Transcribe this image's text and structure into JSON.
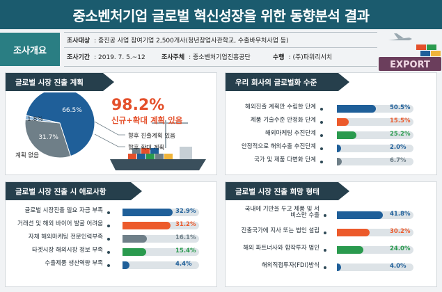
{
  "title": "중소벤처기업 글로벌 혁신성장을 위한 동향분석 결과",
  "overview": {
    "label": "조사개요",
    "subject_key": "조사대상",
    "subject_value": ": 중진공 사업 참여기업 2,500개사(청년창업사관학교, 수출바우처사업 등)",
    "period_key": "조사기간",
    "period_value": ": 2019. 7. 5.~12",
    "host_key": "조사주체",
    "host_value": ": 중소벤처기업진흥공단",
    "contractor_key": "수행",
    "contractor_value": ": (주)파워리서치",
    "export_sign": "EXPORT"
  },
  "colors": {
    "blue": "#1f5f99",
    "orange": "#ec5a2b",
    "green": "#2a9a4e",
    "gray": "#6f7f88",
    "lightblue": "#8fb8dc",
    "accent": "#e4502b",
    "header": "#263f4c",
    "track": "#dde3e7"
  },
  "panels": {
    "plans": "글로벌 시장 진출 계획",
    "level": "우리 회사의 글로벌화 수준",
    "difficulties": "글로벌 시장 진출 시 애로사항",
    "hope": "글로벌 시장 진출 희망 형태"
  },
  "plans_extra": {
    "highlight_pct": "98.2%",
    "highlight_text": "신규+확대 계획 있음",
    "legend_future": "향후 진출계획 있음",
    "legend_expand": "향후 확대 계획",
    "legend_none": "계획 없음"
  },
  "chart_data": [
    {
      "type": "pie",
      "title": "글로벌 시장 진출 계획",
      "labels": [
        "향후 진출계획 있음",
        "향후 확대 계획",
        "계획 없음"
      ],
      "values": [
        66.5,
        31.7,
        1.8
      ],
      "value_labels": [
        "66.5%",
        "31.7%",
        "1.8%"
      ],
      "colors": [
        "#1f5f99",
        "#6f7f88",
        "#8fb8dc"
      ]
    },
    {
      "type": "bar",
      "title": "우리 회사의 글로벌화 수준",
      "categories": [
        "해외진출 계획만 수립한 단계",
        "제품 기술수준 안정화 단계",
        "해외마케팅 추진단계",
        "안정적으로 해외수출 추진단계",
        "국가 및 제품 다변화 단계"
      ],
      "values": [
        50.5,
        15.5,
        25.2,
        2.0,
        6.7
      ],
      "value_labels": [
        "50.5%",
        "15.5%",
        "25.2%",
        "2.0%",
        "6.7%"
      ],
      "colors": [
        "#1f5f99",
        "#ec5a2b",
        "#2a9a4e",
        "#1f5f99",
        "#6f7f88"
      ],
      "xlim": [
        0,
        100
      ]
    },
    {
      "type": "bar",
      "title": "글로벌 시장 진출 시 애로사항",
      "categories": [
        "글로벌 시장진출 필요 자금 부족",
        "거래선 및 해외 바이어 발굴 어려움",
        "자체 해외마케팅 전문인력부족",
        "타겟시장 해외시장 정보 부족",
        "수출제품 생산역량 부족"
      ],
      "values": [
        32.9,
        31.2,
        16.1,
        15.4,
        4.4
      ],
      "value_labels": [
        "32.9%",
        "31.2%",
        "16.1%",
        "15.4%",
        "4.4%"
      ],
      "colors": [
        "#1f5f99",
        "#ec5a2b",
        "#6f7f88",
        "#2a9a4e",
        "#1f5f99"
      ],
      "xlim": [
        0,
        50
      ]
    },
    {
      "type": "bar",
      "title": "글로벌 시장 진출 희망 형태",
      "categories": [
        "국내에 기반을 두고 제품 및 서비스만 수출",
        "진출국가에 지사 또는 법인 설립",
        "해외 파트너사와 합작투자 법인",
        "해외직접투자(FDI)방식"
      ],
      "values": [
        41.8,
        30.2,
        24.0,
        4.0
      ],
      "value_labels": [
        "41.8%",
        "30.2%",
        "24.0%",
        "4.0%"
      ],
      "colors": [
        "#1f5f99",
        "#ec5a2b",
        "#2a9a4e",
        "#1f5f99"
      ],
      "xlim": [
        0,
        70
      ]
    }
  ]
}
